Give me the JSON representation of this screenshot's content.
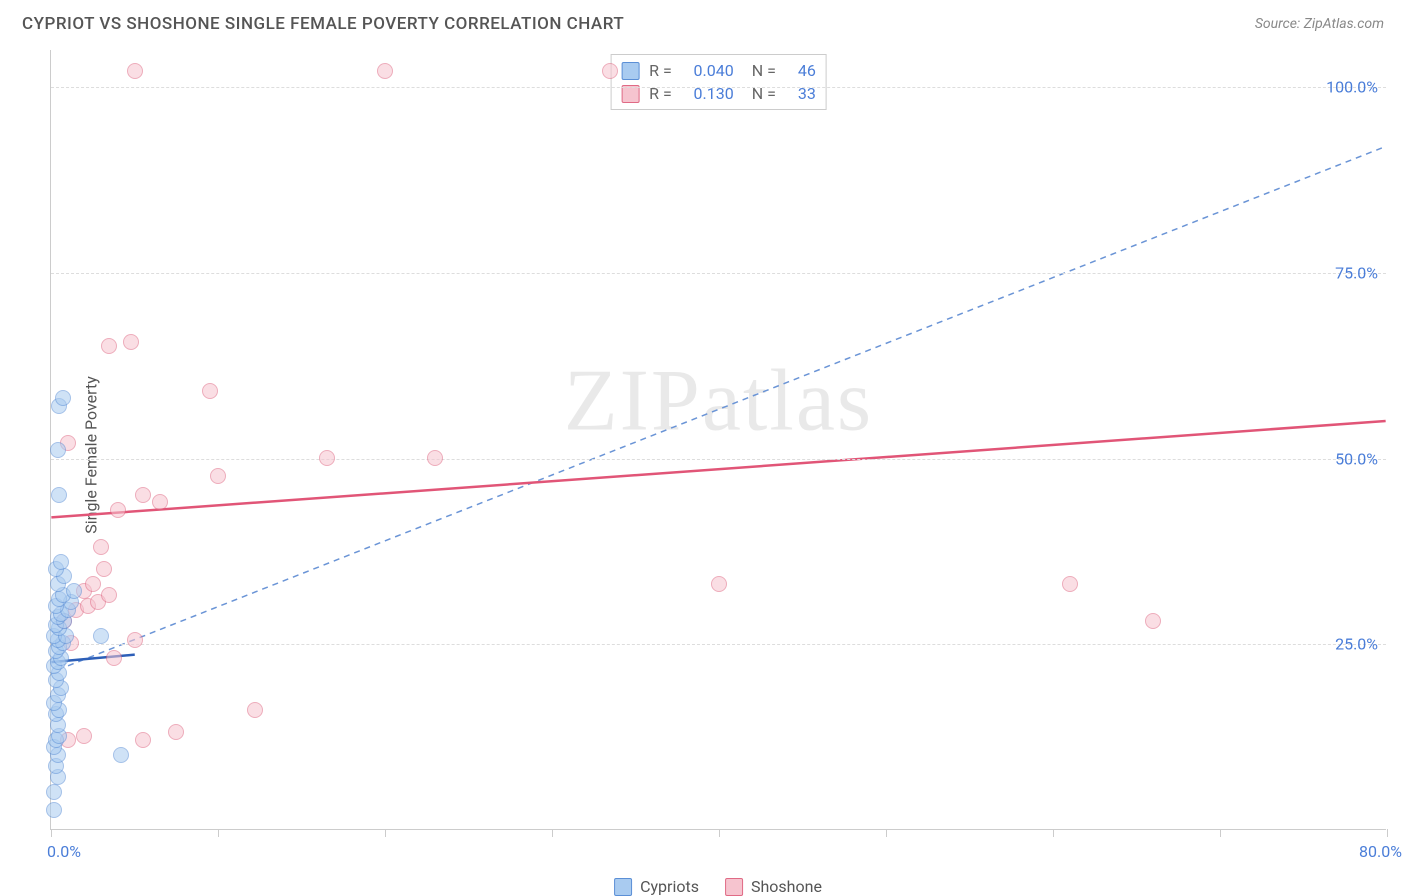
{
  "header": {
    "title": "CYPRIOT VS SHOSHONE SINGLE FEMALE POVERTY CORRELATION CHART",
    "source": "Source: ZipAtlas.com"
  },
  "chart": {
    "type": "scatter",
    "y_axis_label": "Single Female Poverty",
    "watermark": "ZIPatlas",
    "xlim": [
      0,
      80
    ],
    "ylim": [
      0,
      105
    ],
    "x_ticks": [
      0,
      10,
      20,
      30,
      40,
      50,
      60,
      70,
      80
    ],
    "x_tick_labels": {
      "0": "0.0%",
      "80": "80.0%"
    },
    "y_gridlines": [
      25,
      50,
      75,
      100
    ],
    "y_tick_labels": {
      "25": "25.0%",
      "50": "50.0%",
      "75": "75.0%",
      "100": "100.0%"
    },
    "background_color": "#ffffff",
    "grid_color": "#dddddd",
    "axis_color": "#cccccc",
    "tick_label_color": "#4a7dd8",
    "marker_size": 16,
    "series": {
      "cypriots": {
        "label": "Cypriots",
        "fill_color": "#a9cbf0",
        "stroke_color": "#5b8fd6",
        "fill_opacity": 0.55,
        "r_value": "0.040",
        "n_value": "46",
        "trend_solid": {
          "x1": 0,
          "y1": 22.5,
          "x2": 5,
          "y2": 23.5,
          "color": "#2d5fb8",
          "width": 2.5
        },
        "trend_dashed": {
          "x1": 1,
          "y1": 22,
          "x2": 80,
          "y2": 92,
          "color": "#6a94d6",
          "width": 1.5,
          "dash": "6 5"
        },
        "points": [
          [
            0.2,
            2.5
          ],
          [
            0.2,
            5
          ],
          [
            0.4,
            7
          ],
          [
            0.3,
            8.5
          ],
          [
            0.4,
            10
          ],
          [
            0.2,
            11
          ],
          [
            0.3,
            12
          ],
          [
            0.5,
            12.5
          ],
          [
            0.4,
            14
          ],
          [
            0.3,
            15.5
          ],
          [
            0.5,
            16
          ],
          [
            0.2,
            17
          ],
          [
            0.4,
            18
          ],
          [
            0.6,
            19
          ],
          [
            0.3,
            20
          ],
          [
            0.5,
            21
          ],
          [
            0.2,
            22
          ],
          [
            0.4,
            22.5
          ],
          [
            0.6,
            23
          ],
          [
            0.3,
            24
          ],
          [
            0.5,
            24.5
          ],
          [
            0.7,
            25
          ],
          [
            0.4,
            25.5
          ],
          [
            0.2,
            26
          ],
          [
            0.9,
            26
          ],
          [
            0.5,
            27
          ],
          [
            0.3,
            27.5
          ],
          [
            0.8,
            28
          ],
          [
            0.4,
            28.5
          ],
          [
            0.6,
            29
          ],
          [
            1.0,
            29.5
          ],
          [
            0.3,
            30
          ],
          [
            1.2,
            30.5
          ],
          [
            0.5,
            31
          ],
          [
            0.7,
            31.5
          ],
          [
            1.4,
            32
          ],
          [
            0.4,
            33
          ],
          [
            0.8,
            34
          ],
          [
            0.3,
            35
          ],
          [
            0.6,
            36
          ],
          [
            0.5,
            45
          ],
          [
            0.4,
            51
          ],
          [
            0.5,
            57
          ],
          [
            0.7,
            58
          ],
          [
            4.2,
            10
          ],
          [
            3.0,
            26
          ]
        ]
      },
      "shoshone": {
        "label": "Shoshone",
        "fill_color": "#f6c4cf",
        "stroke_color": "#e06a85",
        "fill_opacity": 0.55,
        "r_value": "0.130",
        "n_value": "33",
        "trend_solid": {
          "x1": 0,
          "y1": 42,
          "x2": 80,
          "y2": 55,
          "color": "#e15577",
          "width": 2.5
        },
        "points": [
          [
            1.0,
            12
          ],
          [
            2.0,
            12.5
          ],
          [
            5.5,
            12
          ],
          [
            7.5,
            13
          ],
          [
            12.2,
            16
          ],
          [
            3.8,
            23
          ],
          [
            5.0,
            25.5
          ],
          [
            0.8,
            28
          ],
          [
            1.5,
            29.5
          ],
          [
            2.2,
            30
          ],
          [
            2.8,
            30.5
          ],
          [
            3.5,
            31.5
          ],
          [
            2.0,
            32
          ],
          [
            2.5,
            33
          ],
          [
            3.2,
            35
          ],
          [
            3.0,
            38
          ],
          [
            4.0,
            43
          ],
          [
            6.5,
            44
          ],
          [
            5.5,
            45
          ],
          [
            10.0,
            47.5
          ],
          [
            16.5,
            50
          ],
          [
            23.0,
            50
          ],
          [
            1.0,
            52
          ],
          [
            9.5,
            59
          ],
          [
            3.5,
            65
          ],
          [
            4.8,
            65.5
          ],
          [
            5.0,
            102
          ],
          [
            20.0,
            102
          ],
          [
            33.5,
            102
          ],
          [
            40.0,
            33
          ],
          [
            61.0,
            33
          ],
          [
            66.0,
            28
          ],
          [
            1.2,
            25
          ]
        ]
      }
    },
    "stats_legend": {
      "r_label": "R =",
      "n_label": "N ="
    },
    "bottom_legend_labels": [
      "Cypriots",
      "Shoshone"
    ]
  }
}
